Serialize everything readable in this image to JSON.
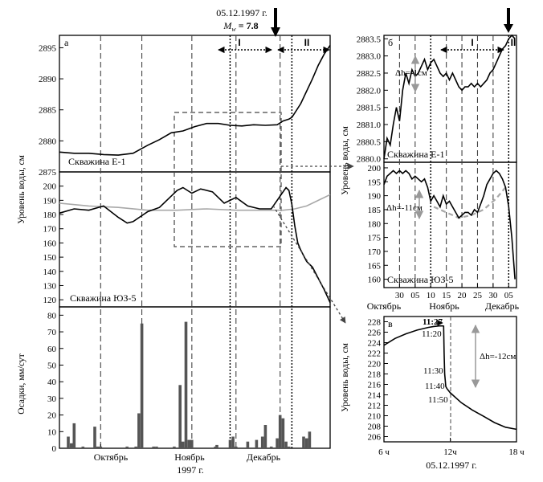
{
  "header": {
    "date": "05.12.1997 г.",
    "magnitude_symbol": "M",
    "magnitude_sub": "w",
    "magnitude_value": "= 7.8"
  },
  "period_labels": [
    "I",
    "II"
  ],
  "panel_a": {
    "letter": "а",
    "well_top": "Скважина Е-1",
    "well_mid": "Скважина ЮЗ-5",
    "ylabel_levels": "Уровень воды, см",
    "ylabel_rain": "Осадки, мм/сут",
    "months": [
      "Октябрь",
      "Ноябрь",
      "Декабрь"
    ],
    "year": "1997 г.",
    "ticks_top": [
      "2875",
      "2880",
      "2885",
      "2890",
      "2895"
    ],
    "ticks_mid": [
      "120",
      "130",
      "140",
      "150",
      "160",
      "170",
      "180",
      "190",
      "200"
    ],
    "ticks_rain": [
      "0",
      "10",
      "20",
      "30",
      "40",
      "50",
      "60",
      "70",
      "80"
    ]
  },
  "panel_b": {
    "letter": "б",
    "well_top": "Скважина Е-1",
    "well_bottom": "Скважина ЮЗ-5",
    "ylabel": "Уровень воды, см",
    "dh_top": "Δh=-1см",
    "dh_bottom": "Δh=-11см",
    "ticks_top": [
      "2880.0",
      "2880.5",
      "2881.0",
      "2881.5",
      "2882.0",
      "2882.5",
      "2883.0",
      "2883.5"
    ],
    "ticks_bottom": [
      "160",
      "165",
      "170",
      "175",
      "180",
      "185",
      "190",
      "195",
      "200"
    ],
    "xticks": [
      "30",
      "05",
      "10",
      "15",
      "20",
      "25",
      "30",
      "05"
    ],
    "months": [
      "Октябрь",
      "Ноябрь",
      "Декабрь"
    ]
  },
  "panel_c": {
    "letter": "в",
    "ylabel": "Уровень воды, см",
    "dh": "Δh=-12см",
    "time_marks": [
      "11:27",
      "11:20",
      "11:30",
      "11:40",
      "11:50"
    ],
    "yticks": [
      "206",
      "208",
      "210",
      "212",
      "214",
      "216",
      "218",
      "220",
      "222",
      "224",
      "226",
      "228"
    ],
    "xticks": [
      "6 ч",
      "12ч",
      "18 ч"
    ],
    "date": "05.12.1997 г."
  },
  "chart_data": [
    {
      "type": "line",
      "panel": "а (top)",
      "series": [
        {
          "name": "Скважина Е-1"
        }
      ],
      "x_unit": "day of year 1997",
      "xlim": [
        260,
        352
      ],
      "ylim": [
        2875,
        2897
      ],
      "x": [
        260,
        265,
        270,
        275,
        280,
        285,
        290,
        294,
        298,
        302,
        306,
        310,
        314,
        318,
        322,
        326,
        330,
        334,
        336,
        338,
        339,
        340,
        342,
        344,
        346,
        348,
        350,
        352
      ],
      "y": [
        2878.2,
        2878.0,
        2878.0,
        2877.8,
        2877.7,
        2878.0,
        2879.3,
        2880.2,
        2881.3,
        2881.6,
        2882.3,
        2882.8,
        2882.8,
        2882.5,
        2882.4,
        2882.6,
        2882.5,
        2882.6,
        2883.2,
        2883.5,
        2883.8,
        2884.5,
        2886.0,
        2888.0,
        2890.0,
        2892.2,
        2894.0,
        2895.4
      ],
      "event_day": 339
    },
    {
      "type": "line",
      "panel": "а (middle)",
      "series": [
        {
          "name": "Скважина ЮЗ-5",
          "color": "#000000",
          "x": [
            260,
            265,
            270,
            275,
            280,
            283,
            285,
            290,
            294,
            298,
            300,
            302,
            305,
            308,
            312,
            316,
            320,
            324,
            328,
            332,
            336,
            337,
            338,
            339,
            340,
            341,
            342,
            344,
            346,
            348,
            350,
            352
          ],
          "y": [
            181,
            184,
            183,
            186,
            178,
            174,
            175,
            182,
            185,
            193,
            197,
            199,
            195,
            198,
            196,
            188,
            192,
            186,
            184,
            184,
            196,
            199,
            197,
            187,
            172,
            160,
            155,
            147,
            143,
            135,
            127,
            118
          ]
        },
        {
          "color": "#a8a8a8",
          "x": [
            260,
            270,
            280,
            290,
            300,
            310,
            320,
            330,
            336,
            340,
            344,
            348,
            352
          ],
          "y": [
            188,
            186,
            185,
            183,
            183,
            184,
            183,
            183,
            183,
            184,
            186,
            190,
            194
          ]
        }
      ],
      "xlim": [
        260,
        352
      ],
      "ylim": [
        115,
        210
      ]
    },
    {
      "type": "bar",
      "panel": "а (bottom)",
      "x_unit": "day of year 1997",
      "x": [
        263,
        264,
        265,
        268,
        272,
        273,
        274,
        283,
        286,
        287,
        288,
        292,
        293,
        299,
        301,
        302,
        303,
        304,
        305,
        313,
        313.5,
        318,
        319,
        320,
        324,
        327,
        329,
        330,
        332,
        334,
        335,
        336,
        337,
        338,
        343,
        344,
        345
      ],
      "values": [
        7,
        3,
        15,
        1,
        13,
        1,
        1,
        1,
        1,
        21,
        75,
        1,
        1,
        1,
        38,
        4,
        76,
        5,
        5,
        1,
        2,
        5,
        7,
        1,
        4,
        5,
        7,
        14,
        1,
        6,
        20,
        18,
        4,
        1,
        7,
        6,
        10
      ],
      "ylim": [
        0,
        85
      ]
    },
    {
      "type": "line",
      "panel": "б (top)",
      "series": [
        {
          "name": "Скважина Е-1"
        }
      ],
      "x_unit": "day of year 1997",
      "xlim": [
        298,
        340.5
      ],
      "ylim": [
        2879.9,
        2883.6
      ],
      "x": [
        298,
        299,
        300,
        301,
        302,
        303,
        304,
        305,
        306,
        307,
        308,
        309,
        310,
        311,
        312,
        313,
        314,
        315,
        316,
        317,
        318,
        319,
        320,
        321,
        322,
        323,
        324,
        325,
        326,
        327,
        328,
        329,
        330,
        331,
        332,
        333,
        334,
        335,
        336,
        337,
        338,
        339,
        340
      ],
      "y": [
        2880.0,
        2880.6,
        2880.4,
        2881.0,
        2881.5,
        2881.1,
        2882.0,
        2882.5,
        2882.2,
        2882.6,
        2882.4,
        2882.5,
        2882.7,
        2882.9,
        2882.6,
        2882.8,
        2882.9,
        2882.7,
        2882.5,
        2882.4,
        2882.5,
        2882.3,
        2882.5,
        2882.3,
        2882.1,
        2882.0,
        2882.1,
        2882.1,
        2882.2,
        2882.1,
        2882.2,
        2882.1,
        2882.2,
        2882.3,
        2882.5,
        2882.6,
        2882.8,
        2883.0,
        2883.2,
        2883.3,
        2883.5,
        2883.6,
        2883.5
      ],
      "event_day": 339
    },
    {
      "type": "line",
      "panel": "б (bottom)",
      "series": [
        {
          "name": "Скважина ЮЗ-5",
          "color": "#000000",
          "x": [
            298,
            299,
            300,
            301,
            302,
            303,
            304,
            305,
            306,
            307,
            308,
            309,
            310,
            311,
            312,
            313,
            314,
            315,
            316,
            317,
            318,
            319,
            320,
            321,
            322,
            323,
            324,
            325,
            326,
            327,
            328,
            329,
            330,
            331,
            332,
            333,
            334,
            335,
            336,
            337,
            338,
            339,
            340
          ],
          "y": [
            194,
            197,
            198,
            199,
            198,
            199,
            198,
            199,
            198,
            196,
            197,
            196,
            195,
            196,
            193,
            188,
            190,
            188,
            186,
            190,
            187,
            188,
            186,
            184,
            182,
            183,
            184,
            184,
            183,
            185,
            184,
            187,
            190,
            194,
            196,
            198,
            199,
            198,
            196,
            193,
            186,
            175,
            160
          ]
        },
        {
          "color": "#a8a8a8",
          "x": [
            314,
            318,
            322,
            326,
            330,
            334,
            337
          ],
          "y": [
            186,
            184,
            182,
            183,
            185,
            189,
            193
          ]
        }
      ],
      "xlim": [
        298,
        340.5
      ],
      "ylim": [
        157,
        202
      ]
    },
    {
      "type": "line",
      "panel": "в",
      "x_unit": "hour, 05.12.1997",
      "xlim": [
        6,
        18
      ],
      "ylim": [
        205,
        229
      ],
      "x": [
        6,
        7,
        8,
        9,
        10,
        10.5,
        11,
        11.3,
        11.4,
        11.45,
        11.5,
        11.6,
        11.7,
        11.85,
        12,
        13,
        14,
        15,
        16,
        17,
        18
      ],
      "y": [
        223.5,
        224.8,
        225.7,
        226.4,
        226.9,
        227.1,
        227.2,
        227.2,
        227.15,
        222,
        218,
        215.6,
        215.2,
        214.8,
        214.4,
        212.5,
        211.1,
        209.9,
        208.7,
        207.8,
        207.4
      ],
      "event_time": "11:27"
    }
  ]
}
